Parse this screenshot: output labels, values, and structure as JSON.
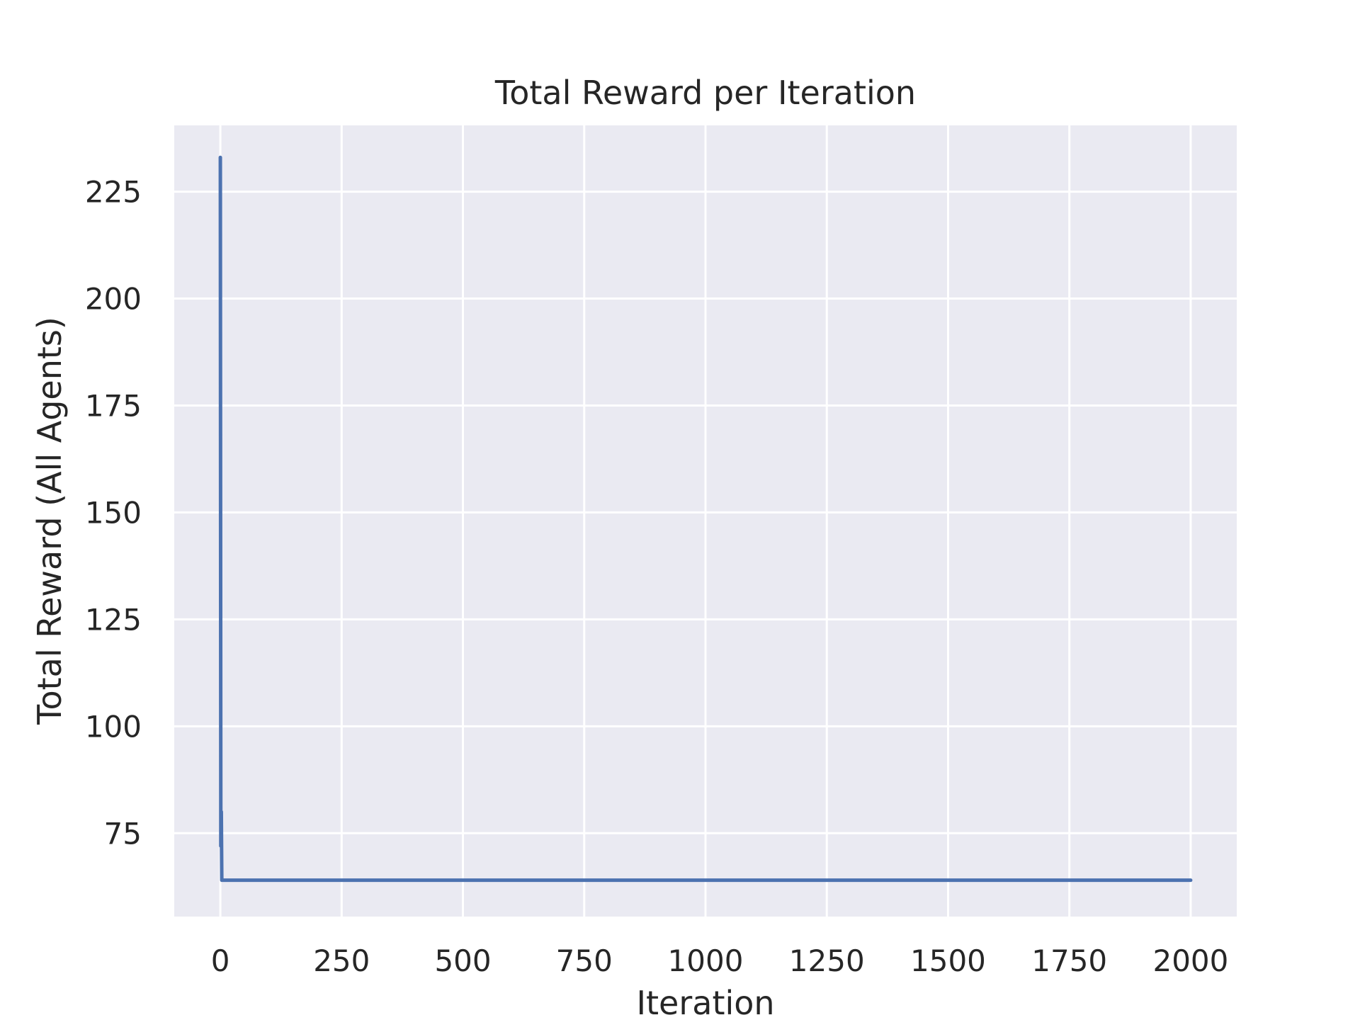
{
  "chart_data": {
    "type": "line",
    "title": "Total Reward per Iteration",
    "xlabel": "Iteration",
    "ylabel": "Total Reward (All Agents)",
    "xlim": [
      -95,
      2095
    ],
    "ylim": [
      55.5,
      240.5
    ],
    "x_ticks": [
      0,
      250,
      500,
      750,
      1000,
      1250,
      1500,
      1750,
      2000
    ],
    "y_ticks": [
      75,
      100,
      125,
      150,
      175,
      200,
      225
    ],
    "grid": true,
    "legend": "none",
    "series": [
      {
        "color": "#4c72b0",
        "x": [
          0,
          1,
          2,
          3,
          4,
          5,
          2000
        ],
        "y": [
          233,
          72,
          80,
          64,
          64,
          64,
          64
        ]
      }
    ]
  },
  "colors": {
    "plot_background": "#eaeaf2",
    "grid": "#ffffff",
    "text": "#262626",
    "line": "#4c72b0"
  }
}
